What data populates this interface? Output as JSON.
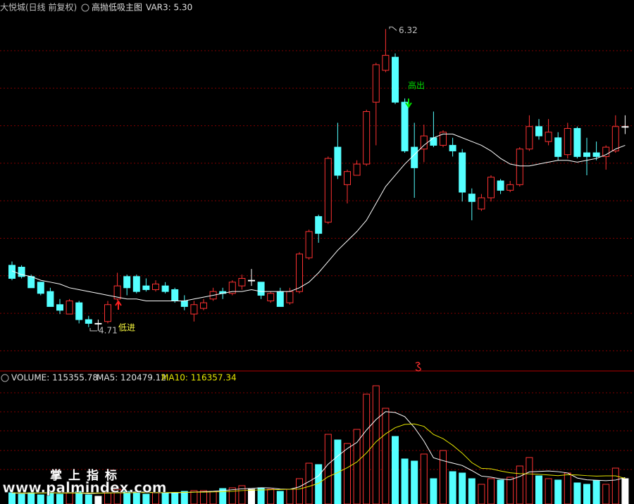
{
  "header": {
    "stock": "大悦城(日线 前复权)",
    "indicator": "高抛低吸主图",
    "var3": "VAR3: 5.30"
  },
  "chart_data": [
    {
      "type": "candlestick",
      "up_color": "#ff3232",
      "down_color": "#54ffff",
      "flat_color": "#ffffff",
      "ylim": [
        4.56,
        6.4
      ],
      "open": [
        5.06,
        5.05,
        5.0,
        4.97,
        4.92,
        4.85,
        4.8,
        4.86,
        4.77,
        4.75,
        4.76,
        4.88,
        5.0,
        5.0,
        4.95,
        4.93,
        4.95,
        4.93,
        4.87,
        4.8,
        4.83,
        4.88,
        4.92,
        4.91,
        4.95,
        4.98,
        4.97,
        4.87,
        4.92,
        4.86,
        4.92,
        5.1,
        5.32,
        5.29,
        5.69,
        5.49,
        5.54,
        5.6,
        5.93,
        6.1,
        6.17,
        5.93,
        5.69,
        5.68,
        5.74,
        5.7,
        5.7,
        5.66,
        5.44,
        5.36,
        5.42,
        5.51,
        5.46,
        5.49,
        5.68,
        5.8,
        5.72,
        5.74,
        5.65,
        5.79,
        5.66,
        5.66,
        5.64,
        5.67,
        5.8
      ],
      "high": [
        5.08,
        5.06,
        5.01,
        4.97,
        4.94,
        4.88,
        4.88,
        4.87,
        4.79,
        4.77,
        4.87,
        5.02,
        5.01,
        5.01,
        4.99,
        4.98,
        4.97,
        4.94,
        4.9,
        4.87,
        4.88,
        4.94,
        4.94,
        4.98,
        5.01,
        5.04,
        4.97,
        4.92,
        4.94,
        4.94,
        5.13,
        5.25,
        5.33,
        5.64,
        5.82,
        5.57,
        5.62,
        5.89,
        6.14,
        6.32,
        6.19,
        5.95,
        5.82,
        5.81,
        5.88,
        5.78,
        5.74,
        5.68,
        5.47,
        5.44,
        5.54,
        5.52,
        5.51,
        5.69,
        5.86,
        5.84,
        5.84,
        5.77,
        5.82,
        5.8,
        5.74,
        5.72,
        5.7,
        5.86,
        5.86
      ],
      "low": [
        4.98,
        4.99,
        4.94,
        4.9,
        4.84,
        4.8,
        4.8,
        4.75,
        4.73,
        4.71,
        4.75,
        4.87,
        4.9,
        4.91,
        4.92,
        4.92,
        4.91,
        4.86,
        4.82,
        4.76,
        4.82,
        4.87,
        4.88,
        4.9,
        4.93,
        4.95,
        4.88,
        4.86,
        4.84,
        4.85,
        4.91,
        5.09,
        5.18,
        5.28,
        5.52,
        5.39,
        5.54,
        5.59,
        5.7,
        6.09,
        5.92,
        5.66,
        5.42,
        5.61,
        5.69,
        5.69,
        5.64,
        5.4,
        5.3,
        5.35,
        5.4,
        5.44,
        5.45,
        5.48,
        5.67,
        5.73,
        5.7,
        5.62,
        5.63,
        5.63,
        5.54,
        5.62,
        5.57,
        5.66,
        5.76
      ],
      "close": [
        4.99,
        5.0,
        4.94,
        4.91,
        4.84,
        4.82,
        4.87,
        4.77,
        4.75,
        4.75,
        4.85,
        4.95,
        4.94,
        4.92,
        4.93,
        4.96,
        4.92,
        4.87,
        4.84,
        4.85,
        4.86,
        4.92,
        4.91,
        4.97,
        4.99,
        4.98,
        4.9,
        4.91,
        4.84,
        4.92,
        5.12,
        5.24,
        5.23,
        5.63,
        5.54,
        5.56,
        5.6,
        5.88,
        6.13,
        6.18,
        5.93,
        5.67,
        5.58,
        5.75,
        5.7,
        5.77,
        5.67,
        5.45,
        5.4,
        5.42,
        5.53,
        5.46,
        5.49,
        5.68,
        5.8,
        5.75,
        5.77,
        5.64,
        5.79,
        5.64,
        5.64,
        5.64,
        5.69,
        5.8,
        5.8
      ],
      "line": {
        "color": "#ffffff",
        "values": [
          5.03,
          5.01,
          5.0,
          4.98,
          4.97,
          4.96,
          4.94,
          4.93,
          4.92,
          4.91,
          4.9,
          4.89,
          4.88,
          4.88,
          4.87,
          4.87,
          4.87,
          4.87,
          4.87,
          4.88,
          4.89,
          4.9,
          4.91,
          4.92,
          4.92,
          4.93,
          4.92,
          4.92,
          4.92,
          4.92,
          4.94,
          4.97,
          5.02,
          5.08,
          5.14,
          5.19,
          5.24,
          5.3,
          5.39,
          5.48,
          5.54,
          5.6,
          5.65,
          5.7,
          5.74,
          5.76,
          5.76,
          5.74,
          5.72,
          5.7,
          5.67,
          5.63,
          5.6,
          5.59,
          5.59,
          5.6,
          5.61,
          5.62,
          5.62,
          5.61,
          5.62,
          5.63,
          5.65,
          5.68,
          5.7
        ]
      },
      "high_mark": 6.32,
      "low_mark": 4.71,
      "sell_label": "高出",
      "buy_label": "低进"
    },
    {
      "type": "bar",
      "ylim": [
        0,
        544000
      ],
      "header": {
        "volume": "VOLUME: 115355.78",
        "ma5": "MA5: 120479.12",
        "ma10": "MA10: 116357.34"
      },
      "values": [
        51200,
        44800,
        51200,
        41600,
        57600,
        44800,
        51200,
        57600,
        41600,
        35200,
        51200,
        67200,
        57600,
        51200,
        44800,
        51200,
        51200,
        51200,
        57600,
        60800,
        60800,
        57600,
        70400,
        73600,
        83200,
        67200,
        73600,
        67200,
        57600,
        67200,
        115200,
        185600,
        179200,
        316800,
        291200,
        275200,
        339200,
        499200,
        537600,
        435200,
        307200,
        204800,
        195200,
        227200,
        115200,
        243200,
        147200,
        140800,
        115200,
        89600,
        115200,
        108800,
        121600,
        172800,
        211200,
        128000,
        115200,
        108800,
        140800,
        96000,
        89600,
        105600,
        89600,
        163200,
        115355.78
      ],
      "series": [
        {
          "color": "#ffffff",
          "values": [
            50000,
            49000,
            49000,
            51000,
            51000,
            50000,
            51000,
            50000,
            47000,
            49000,
            50000,
            52000,
            53000,
            55000,
            54000,
            52000,
            51000,
            51000,
            52000,
            54000,
            56000,
            58000,
            61000,
            65000,
            69000,
            71000,
            74000,
            73000,
            68000,
            67000,
            78000,
            102000,
            128000,
            181000,
            218000,
            252000,
            280000,
            336000,
            384000,
            420000,
            416000,
            397000,
            348000,
            286000,
            210000,
            197000,
            186000,
            175000,
            152000,
            127000,
            122000,
            114000,
            110000,
            125000,
            146000,
            148000,
            150000,
            147000,
            141000,
            118000,
            110000,
            108000,
            106000,
            109000,
            120479.12
          ]
        },
        {
          "color": "#e6e600",
          "values": [
            51000,
            50000,
            50000,
            50000,
            51000,
            50000,
            50000,
            50000,
            50000,
            50000,
            50000,
            51000,
            51000,
            52000,
            52000,
            52000,
            52000,
            53000,
            53000,
            54000,
            54000,
            55000,
            56000,
            58000,
            61000,
            63000,
            64000,
            65000,
            66000,
            67000,
            68000,
            80000,
            94000,
            124000,
            143000,
            165000,
            191000,
            232000,
            283000,
            319000,
            347000,
            362000,
            364000,
            353000,
            316000,
            297000,
            267000,
            231000,
            188000,
            162000,
            160000,
            150000,
            142000,
            138000,
            137000,
            135000,
            132000,
            129000,
            133000,
            132000,
            129000,
            127000,
            128000,
            128000,
            116357.34
          ]
        }
      ]
    }
  ],
  "watermark": {
    "brand": "掌上指标",
    "url": "www.palmindex.com"
  }
}
